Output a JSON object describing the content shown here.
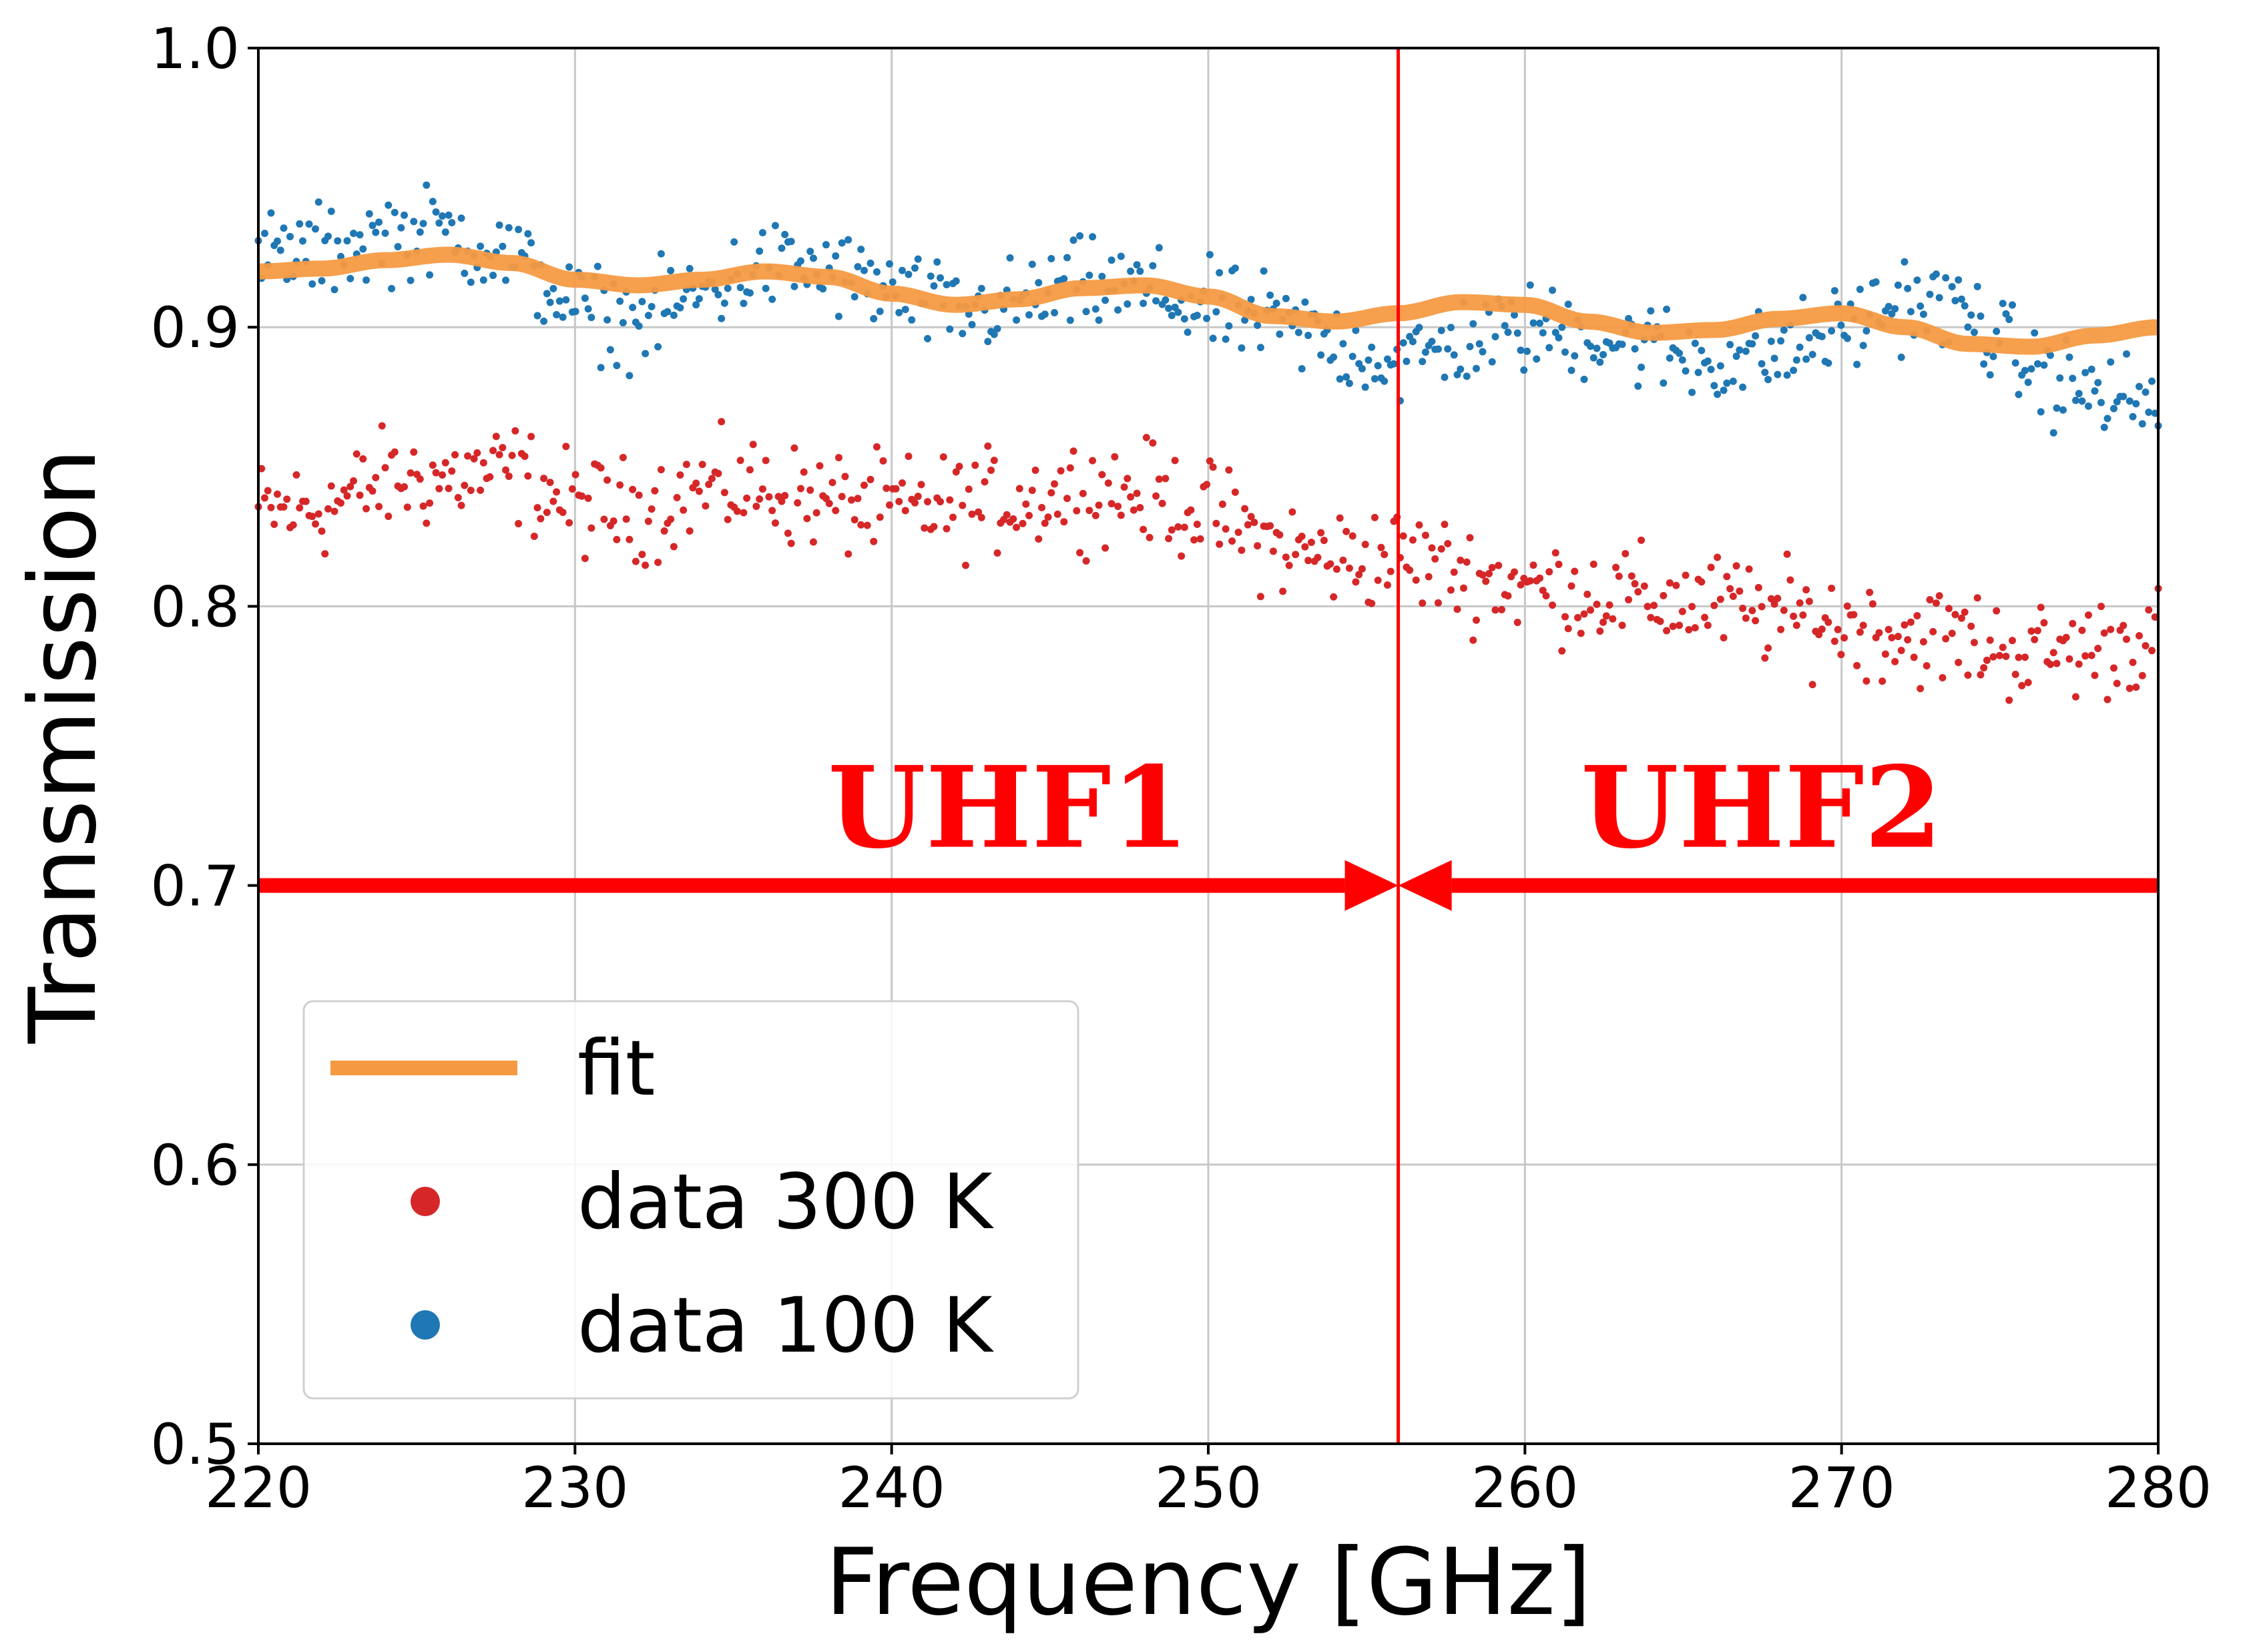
{
  "chart_data": {
    "type": "scatter",
    "xlabel": "Frequency [GHz]",
    "ylabel": "Transmission",
    "xlim": [
      220,
      280
    ],
    "ylim": [
      0.5,
      1.0
    ],
    "xticks": [
      "220",
      "230",
      "240",
      "250",
      "260",
      "270",
      "280"
    ],
    "yticks": [
      "0.5",
      "0.6",
      "0.7",
      "0.8",
      "0.9",
      "1.0"
    ],
    "grid": true,
    "legend_position": "lower-left",
    "series": [
      {
        "name": "fit",
        "kind": "line",
        "color": "#f59a42",
        "x": [
          220,
          222,
          224,
          226,
          228,
          230,
          232,
          234,
          236,
          238,
          240,
          242,
          244,
          246,
          248,
          250,
          252,
          254,
          256,
          258,
          260,
          262,
          264,
          266,
          268,
          270,
          272,
          274,
          276,
          278,
          280
        ],
        "y": [
          0.92,
          0.921,
          0.924,
          0.926,
          0.923,
          0.917,
          0.915,
          0.917,
          0.92,
          0.918,
          0.912,
          0.908,
          0.91,
          0.914,
          0.915,
          0.911,
          0.904,
          0.902,
          0.905,
          0.909,
          0.908,
          0.902,
          0.898,
          0.899,
          0.903,
          0.905,
          0.9,
          0.894,
          0.893,
          0.897,
          0.9
        ]
      },
      {
        "name": "data 300 K",
        "kind": "scatter",
        "color": "#d62728",
        "x": [
          220,
          222,
          224,
          226,
          228,
          230,
          232,
          234,
          236,
          238,
          240,
          242,
          244,
          246,
          248,
          250,
          252,
          254,
          256,
          258,
          260,
          262,
          264,
          266,
          268,
          270,
          272,
          274,
          276,
          278,
          280
        ],
        "y": [
          0.834,
          0.835,
          0.845,
          0.846,
          0.848,
          0.836,
          0.834,
          0.842,
          0.842,
          0.837,
          0.835,
          0.836,
          0.838,
          0.842,
          0.84,
          0.834,
          0.822,
          0.817,
          0.818,
          0.812,
          0.807,
          0.805,
          0.802,
          0.801,
          0.797,
          0.794,
          0.79,
          0.788,
          0.783,
          0.785,
          0.789
        ],
        "spread": 0.009
      },
      {
        "name": "data 100 K",
        "kind": "scatter",
        "color": "#1f77b4",
        "x": [
          220,
          222,
          224,
          226,
          228,
          230,
          232,
          234,
          236,
          238,
          240,
          242,
          244,
          246,
          248,
          250,
          252,
          254,
          256,
          258,
          260,
          262,
          264,
          266,
          268,
          270,
          272,
          274,
          276,
          278,
          280
        ],
        "y": [
          0.926,
          0.927,
          0.933,
          0.934,
          0.925,
          0.907,
          0.902,
          0.912,
          0.922,
          0.92,
          0.912,
          0.905,
          0.908,
          0.915,
          0.913,
          0.906,
          0.902,
          0.894,
          0.887,
          0.895,
          0.899,
          0.897,
          0.893,
          0.888,
          0.89,
          0.899,
          0.91,
          0.905,
          0.884,
          0.876,
          0.872
        ],
        "spread": 0.008
      }
    ],
    "vline": {
      "x": 256,
      "color": "#ff0000"
    },
    "bands": [
      {
        "label": "UHF1",
        "from": 220,
        "to": 256,
        "y": 0.7,
        "color": "#ff0000"
      },
      {
        "label": "UHF2",
        "from": 280,
        "to": 256,
        "y": 0.7,
        "color": "#ff0000"
      }
    ],
    "legend": [
      {
        "label": "fit",
        "kind": "line",
        "color": "#f59a42"
      },
      {
        "label": "data 300 K",
        "kind": "point",
        "color": "#d62728"
      },
      {
        "label": "data 100 K",
        "kind": "point",
        "color": "#1f77b4"
      }
    ]
  }
}
